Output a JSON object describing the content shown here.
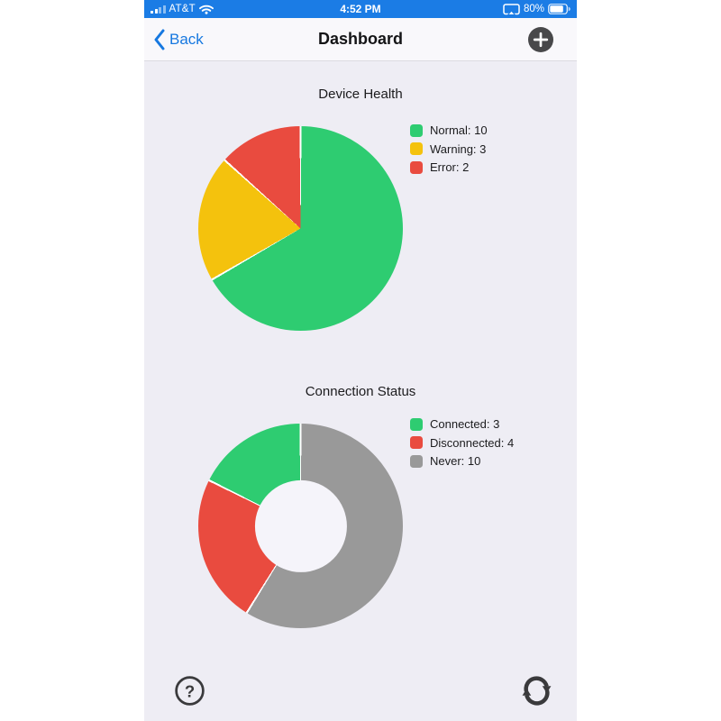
{
  "status_bar": {
    "carrier": "AT&T",
    "time": "4:52 PM",
    "battery_percent": "80%",
    "icons": {
      "signal": "cellular-signal-bars",
      "wifi": "wifi",
      "screen_mirroring": "screen-mirroring",
      "battery": "battery-80"
    }
  },
  "nav_bar": {
    "back_label": "Back",
    "back_icon": "chevron-left",
    "title": "Dashboard",
    "add_icon": "plus-circle"
  },
  "chart_data": [
    {
      "type": "pie",
      "title": "Device Health",
      "labels": [
        "Normal",
        "Warning",
        "Error"
      ],
      "values": [
        10,
        3,
        2
      ],
      "colors": [
        "#2ECC71",
        "#F4C20D",
        "#E94B3F"
      ],
      "legend_position": "right",
      "direction": "clockwise",
      "start_angle_deg": 0
    },
    {
      "type": "doughnut",
      "title": "Connection Status",
      "labels": [
        "Connected",
        "Disconnected",
        "Never"
      ],
      "values": [
        3,
        4,
        10
      ],
      "colors": [
        "#2ECC71",
        "#E94B3F",
        "#999999"
      ],
      "legend_position": "right",
      "direction": "counterclockwise",
      "start_angle_deg": 0,
      "inner_radius_ratio": 0.45
    }
  ],
  "footer": {
    "help_icon": "question-mark-circle",
    "refresh_icon": "refresh-sync"
  },
  "colors": {
    "status_bar_bg": "#1B7CE5",
    "nav_bar_bg": "#F9F8FB",
    "content_bg": "#EEEDF4",
    "accent_blue": "#1678E0",
    "icon_dark": "#3A3A3C",
    "text_primary": "#1C1C1E",
    "slice_separator": "#FFFFFF",
    "donut_hole": "#F5F4FA"
  }
}
